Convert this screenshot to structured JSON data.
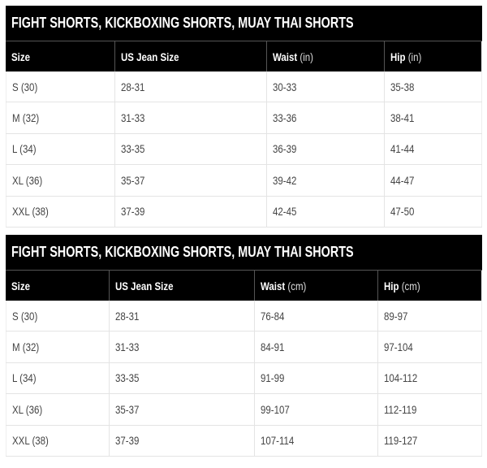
{
  "tables": [
    {
      "title": "FIGHT SHORTS, KICKBOXING SHORTS, MUAY THAI SHORTS",
      "headers": [
        {
          "label": "Size",
          "unit": ""
        },
        {
          "label": "US Jean Size",
          "unit": ""
        },
        {
          "label": "Waist",
          "unit": "(in)"
        },
        {
          "label": "Hip",
          "unit": "(in)"
        }
      ],
      "rows": [
        [
          "S (30)",
          "28-31",
          "30-33",
          "35-38"
        ],
        [
          "M (32)",
          "31-33",
          "33-36",
          "38-41"
        ],
        [
          "L (34)",
          "33-35",
          "36-39",
          "41-44"
        ],
        [
          "XL (36)",
          "35-37",
          "39-42",
          "44-47"
        ],
        [
          "XXL (38)",
          "37-39",
          "42-45",
          "47-50"
        ]
      ]
    },
    {
      "title": "FIGHT SHORTS, KICKBOXING SHORTS, MUAY THAI SHORTS",
      "headers": [
        {
          "label": "Size",
          "unit": ""
        },
        {
          "label": "US Jean Size",
          "unit": ""
        },
        {
          "label": "Waist",
          "unit": "(cm)"
        },
        {
          "label": "Hip",
          "unit": "(cm)"
        }
      ],
      "rows": [
        [
          "S (30)",
          "28-31",
          "76-84",
          "89-97"
        ],
        [
          "M (32)",
          "31-33",
          "84-91",
          "97-104"
        ],
        [
          "L (34)",
          "33-35",
          "91-99",
          "104-112"
        ],
        [
          "XL (36)",
          "35-37",
          "99-107",
          "112-119"
        ],
        [
          "XXL (38)",
          "37-39",
          "107-114",
          "119-127"
        ]
      ]
    }
  ]
}
